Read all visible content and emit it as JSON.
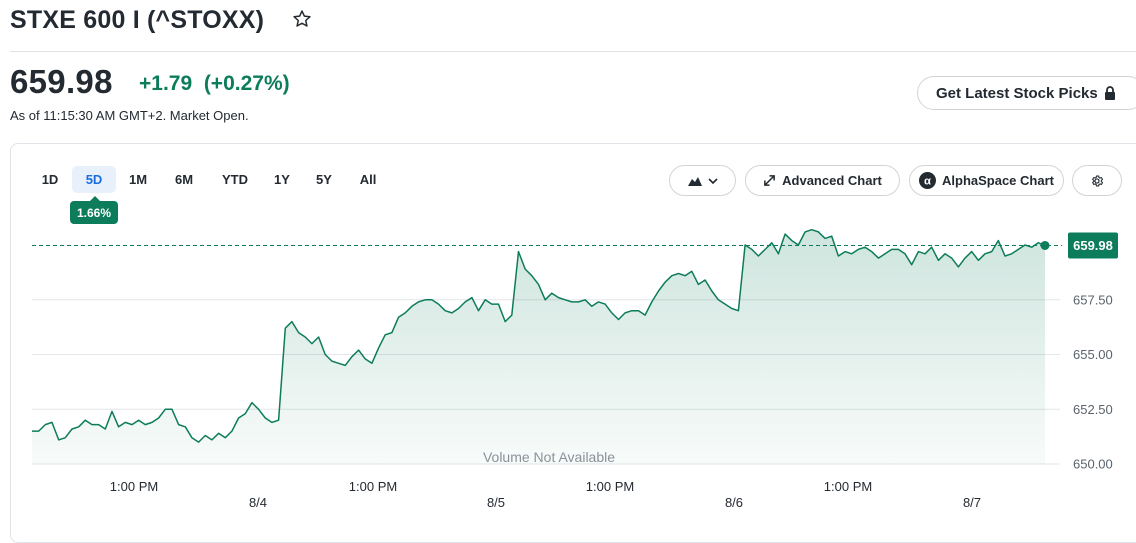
{
  "header": {
    "title": "STXE 600 I (^STOXX)",
    "price": "659.98",
    "change": "+1.79",
    "change_pct": "(+0.27%)",
    "as_of": "As of 11:15:30 AM GMT+2. Market Open.",
    "picks_button": "Get Latest Stock Picks"
  },
  "ranges": [
    "1D",
    "5D",
    "1M",
    "6M",
    "YTD",
    "1Y",
    "5Y",
    "All"
  ],
  "selected_range": "5D",
  "range_badge": "1.66%",
  "toolbar": {
    "advanced_chart": "Advanced Chart",
    "alphaspace_chart": "AlphaSpace Chart"
  },
  "colors": {
    "accent": "#0d7c5a",
    "selected_tab": "#1a6ee0"
  },
  "chart_data": {
    "type": "area",
    "y_ticks": [
      "657.50",
      "655.00",
      "652.50",
      "650.00"
    ],
    "ylim": [
      650,
      661
    ],
    "x_tick_labels": [
      "1:00 PM",
      "8/4",
      "1:00 PM",
      "8/5",
      "1:00 PM",
      "8/6",
      "1:00 PM",
      "8/7"
    ],
    "current_value_label": "659.98",
    "reference_line": 659.98,
    "volume_note": "Volume Not Available",
    "series": [
      {
        "values": [
          651.5,
          651.5,
          651.8,
          651.9,
          651.1,
          651.2,
          651.6,
          651.7,
          652.0,
          651.8,
          651.8,
          651.6,
          652.4,
          651.7,
          651.9,
          651.8,
          652.0,
          651.8,
          651.9,
          652.1,
          652.5,
          652.5,
          651.8,
          651.7,
          651.2,
          651.0,
          651.3,
          651.1,
          651.4,
          651.2,
          651.5,
          652.1,
          652.3,
          652.8,
          652.5,
          652.1,
          651.9,
          652.0,
          656.2,
          656.5,
          656.0,
          655.8,
          655.5,
          655.8,
          655.0,
          654.7,
          654.6,
          654.5,
          654.9,
          655.2,
          654.8,
          654.6,
          655.3,
          655.9,
          656.0,
          656.7,
          656.9,
          657.2,
          657.4,
          657.5,
          657.5,
          657.3,
          657.0,
          656.9,
          657.1,
          657.4,
          657.6,
          657.0,
          657.5,
          657.3,
          657.3,
          656.5,
          656.8,
          659.7,
          658.9,
          658.6,
          658.2,
          657.5,
          657.8,
          657.6,
          657.5,
          657.4,
          657.4,
          657.5,
          657.2,
          657.4,
          657.3,
          656.9,
          656.6,
          656.9,
          657.0,
          657.0,
          656.8,
          657.4,
          657.9,
          658.3,
          658.6,
          658.7,
          658.6,
          658.8,
          658.2,
          658.4,
          657.9,
          657.5,
          657.3,
          657.1,
          657.0,
          660.0,
          659.8,
          659.5,
          659.8,
          660.1,
          659.6,
          660.5,
          660.2,
          660.0,
          660.6,
          660.7,
          660.6,
          660.3,
          660.4,
          659.5,
          659.7,
          659.6,
          659.8,
          659.9,
          659.7,
          659.4,
          659.6,
          659.8,
          659.8,
          659.6,
          659.1,
          659.7,
          659.6,
          659.9,
          659.3,
          659.6,
          659.4,
          659.0,
          659.4,
          659.7,
          659.3,
          659.6,
          659.7,
          660.2,
          659.5,
          659.6,
          659.8,
          660.0,
          659.9,
          660.1,
          659.98
        ]
      }
    ]
  }
}
